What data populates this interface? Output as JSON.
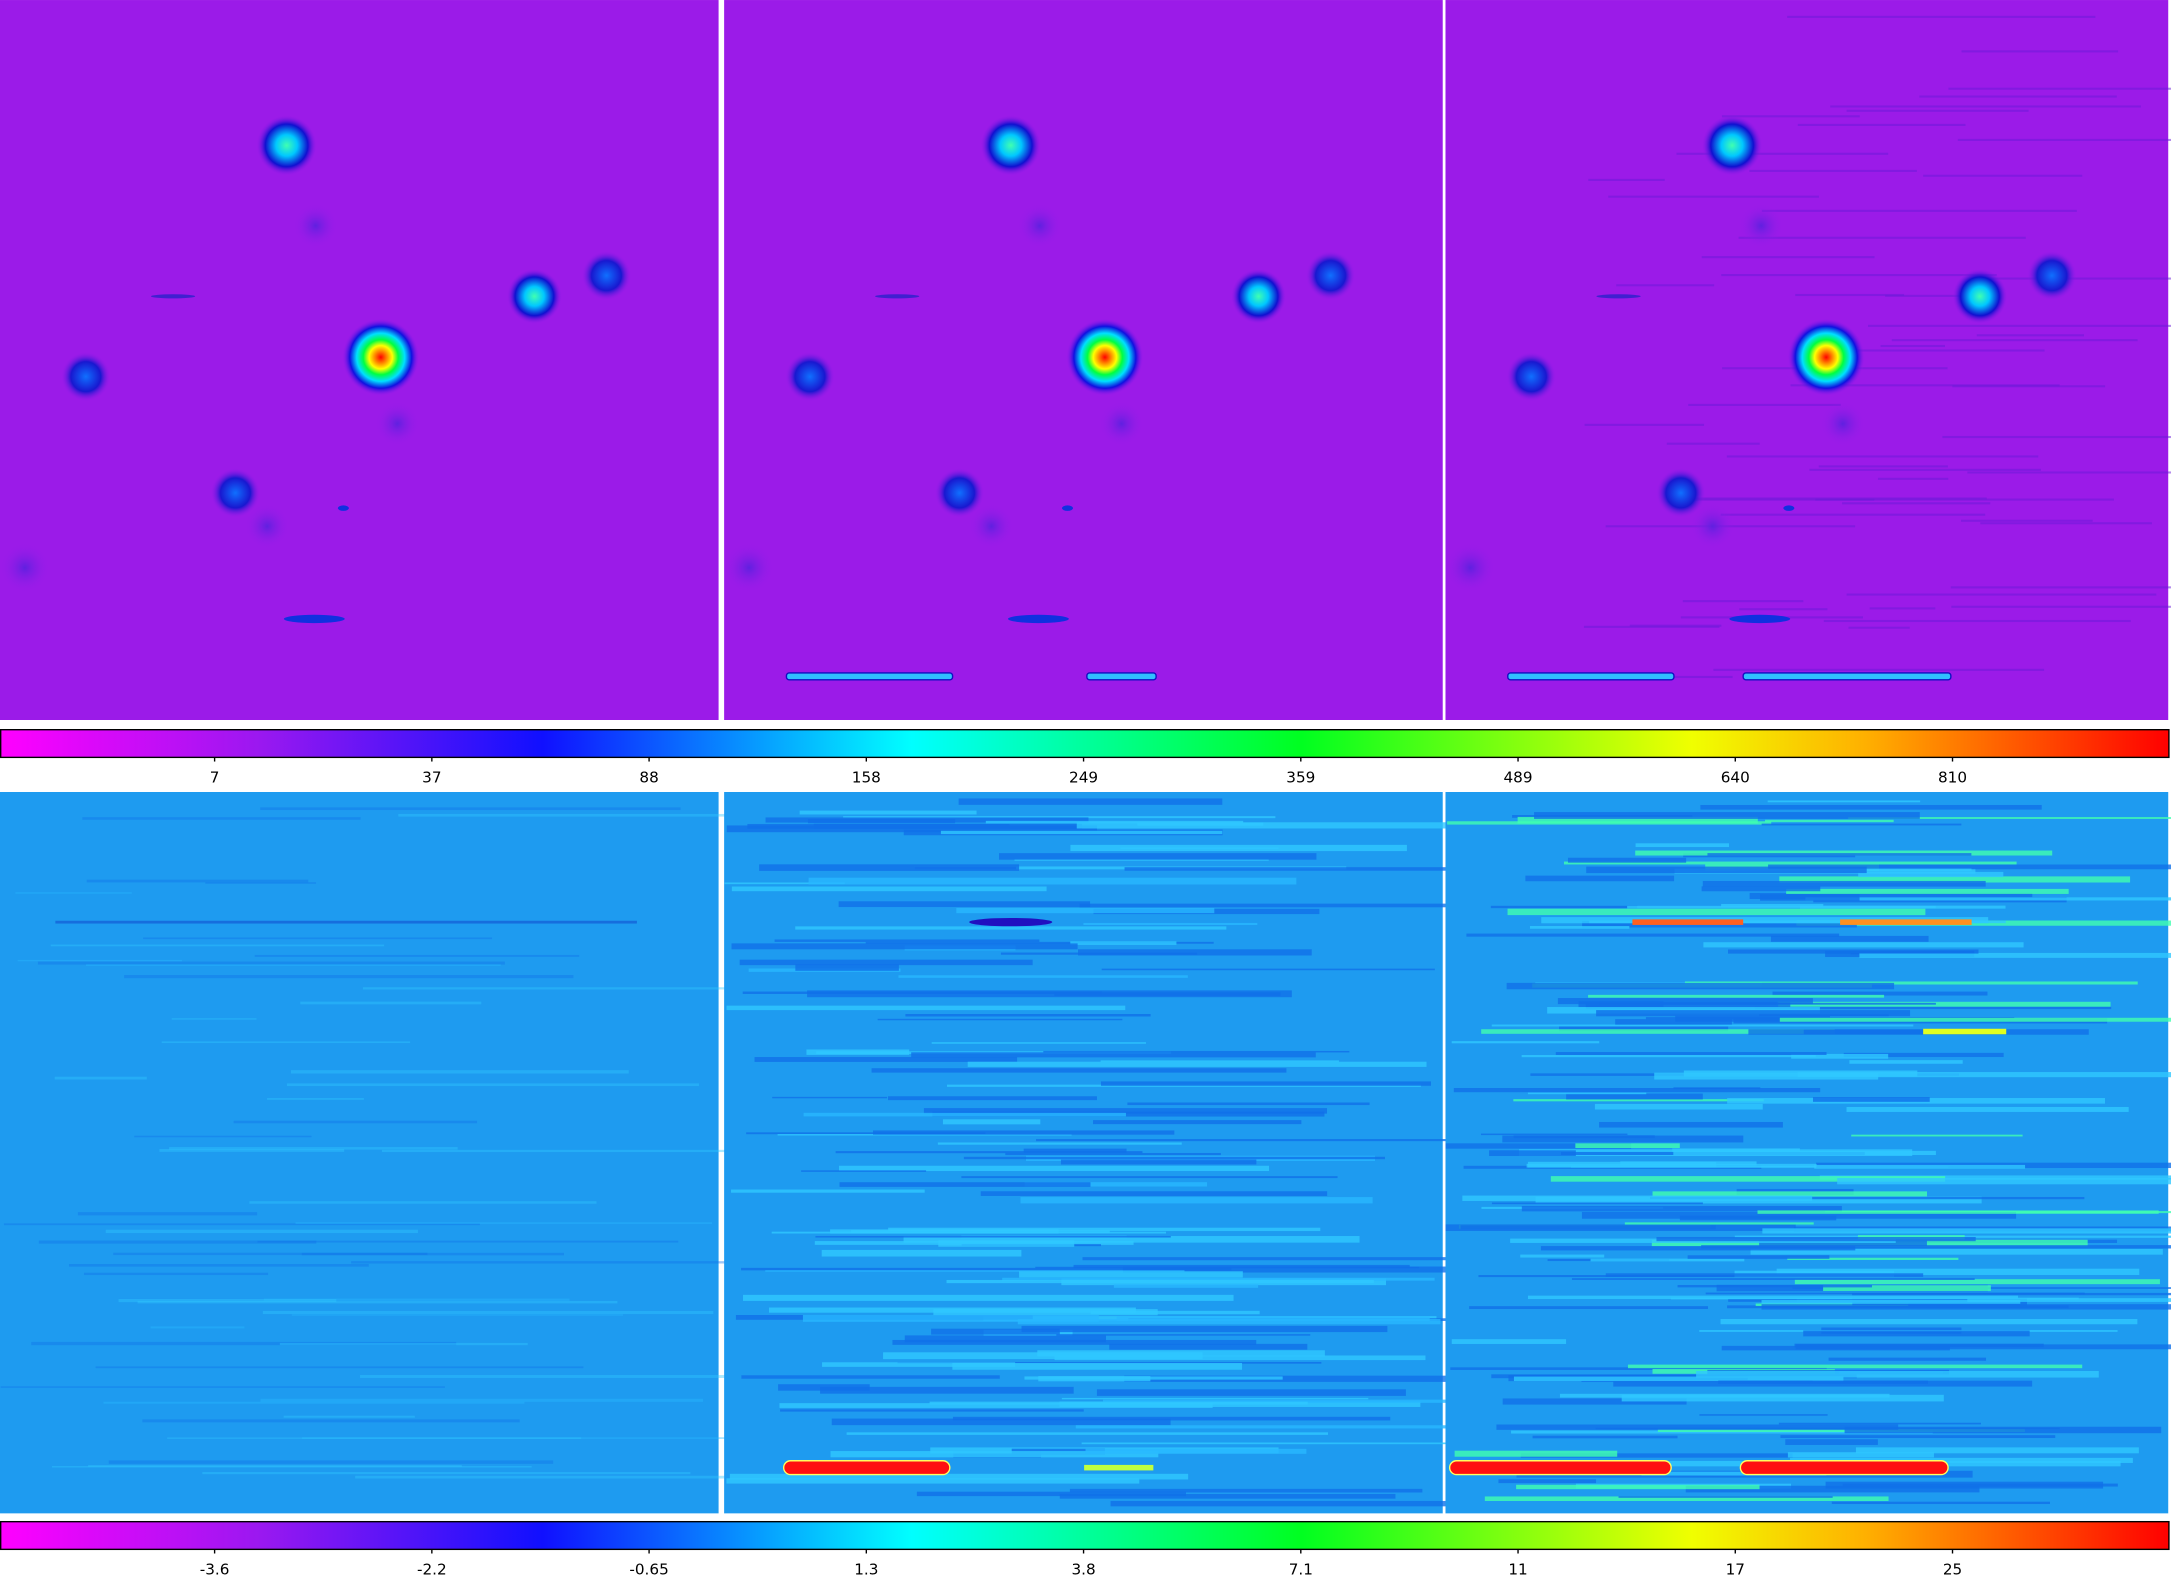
{
  "colorbars": [
    {
      "ticks": [
        7,
        37,
        88,
        158,
        249,
        359,
        489,
        640,
        810
      ]
    },
    {
      "ticks": [
        -3.6,
        -2.2,
        -0.65,
        1.3,
        3.8,
        7.1,
        11,
        17,
        25
      ]
    }
  ]
}
